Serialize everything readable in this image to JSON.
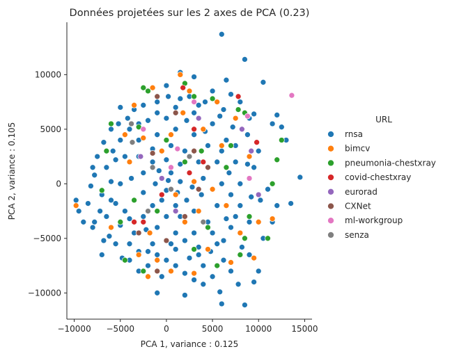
{
  "chart_data": {
    "type": "scatter",
    "title": "Données projetées sur les 2 axes de PCA (0.23)",
    "xlabel": "PCA 1, variance : 0.125",
    "ylabel": "PCA 2, variance : 0.105",
    "xlim": [
      -10800,
      15800
    ],
    "ylim": [
      -12400,
      14800
    ],
    "xticks": [
      -10000,
      -5000,
      0,
      5000,
      10000,
      15000
    ],
    "xtick_labels": [
      "−10000",
      "−5000",
      "0",
      "5000",
      "10000",
      "15000"
    ],
    "yticks": [
      -10000,
      -5000,
      0,
      5000,
      10000
    ],
    "ytick_labels": [
      "−10000",
      "−5000",
      "0",
      "5000",
      "10000"
    ],
    "grid": false,
    "legend_position": "right",
    "legend_title": "URL",
    "series": [
      {
        "name": "rnsa",
        "color": "#1f77b4",
        "points": [
          [
            6000,
            13700
          ],
          [
            8500,
            11400
          ],
          [
            1500,
            10200
          ],
          [
            10500,
            9300
          ],
          [
            6500,
            9500
          ],
          [
            9500,
            6400
          ],
          [
            12000,
            6300
          ],
          [
            11500,
            5500
          ],
          [
            12500,
            5200
          ],
          [
            13000,
            4000
          ],
          [
            14500,
            600
          ],
          [
            13500,
            -1800
          ],
          [
            6000,
            -11000
          ],
          [
            8500,
            -11100
          ],
          [
            5800,
            -9900
          ],
          [
            2000,
            -10200
          ],
          [
            -1000,
            -10000
          ],
          [
            4000,
            -9200
          ],
          [
            7800,
            -9200
          ],
          [
            9500,
            -9000
          ],
          [
            10000,
            -8000
          ],
          [
            -4000,
            -7000
          ],
          [
            -7000,
            -6500
          ],
          [
            -9500,
            -2500
          ],
          [
            -9800,
            -1500
          ],
          [
            -9000,
            -3500
          ],
          [
            -8000,
            -4000
          ],
          [
            -7500,
            2500
          ],
          [
            -6000,
            5000
          ],
          [
            -5000,
            7000
          ],
          [
            -2000,
            8500
          ],
          [
            0,
            9000
          ],
          [
            3000,
            9800
          ],
          [
            5000,
            8500
          ],
          [
            7000,
            8200
          ],
          [
            8000,
            7500
          ],
          [
            9000,
            6000
          ],
          [
            10000,
            3000
          ],
          [
            11000,
            -500
          ],
          [
            12000,
            -2000
          ],
          [
            11500,
            -3500
          ],
          [
            10500,
            -5000
          ],
          [
            9000,
            -6500
          ],
          [
            7000,
            -8000
          ],
          [
            5000,
            -8500
          ],
          [
            3000,
            -8800
          ],
          [
            1000,
            -7500
          ],
          [
            -2000,
            -7500
          ],
          [
            -5500,
            -5500
          ],
          [
            -6500,
            -3000
          ],
          [
            -7000,
            -1000
          ],
          [
            -6500,
            1500
          ],
          [
            -5000,
            4000
          ],
          [
            -3000,
            5500
          ],
          [
            -1000,
            6500
          ],
          [
            1000,
            7000
          ],
          [
            3000,
            6500
          ],
          [
            5000,
            5500
          ],
          [
            6500,
            4000
          ],
          [
            7500,
            2000
          ],
          [
            8000,
            0
          ],
          [
            8000,
            -2000
          ],
          [
            7000,
            -4000
          ],
          [
            5500,
            -5500
          ],
          [
            3500,
            -6500
          ],
          [
            1000,
            -6000
          ],
          [
            -1500,
            -5500
          ],
          [
            -3500,
            -4500
          ],
          [
            -4500,
            -2500
          ],
          [
            -5000,
            0
          ],
          [
            -4500,
            2500
          ],
          [
            -3000,
            4000
          ],
          [
            -1000,
            4500
          ],
          [
            1000,
            5000
          ],
          [
            3000,
            4500
          ],
          [
            4500,
            3500
          ],
          [
            5500,
            2000
          ],
          [
            6000,
            0
          ],
          [
            5500,
            -2000
          ],
          [
            4500,
            -3500
          ],
          [
            3000,
            -4500
          ],
          [
            1000,
            -4500
          ],
          [
            -1000,
            -4000
          ],
          [
            -2500,
            -3000
          ],
          [
            -3500,
            -1500
          ],
          [
            -3800,
            500
          ],
          [
            -3000,
            2500
          ],
          [
            -1500,
            3200
          ],
          [
            500,
            3500
          ],
          [
            2000,
            3000
          ],
          [
            3500,
            2000
          ],
          [
            4000,
            500
          ],
          [
            3800,
            -1000
          ],
          [
            3000,
            -2500
          ],
          [
            1500,
            -3000
          ],
          [
            0,
            -3000
          ],
          [
            -1500,
            -2000
          ],
          [
            -2500,
            -800
          ],
          [
            -2500,
            1000
          ],
          [
            -1500,
            2000
          ],
          [
            0,
            2200
          ],
          [
            1500,
            1800
          ],
          [
            2500,
            1000
          ],
          [
            2800,
            -300
          ],
          [
            2200,
            -1500
          ],
          [
            1000,
            -2000
          ],
          [
            -500,
            -1500
          ],
          [
            -1200,
            0
          ],
          [
            -800,
            1200
          ],
          [
            500,
            1000
          ],
          [
            1500,
            200
          ],
          [
            1200,
            -800
          ],
          [
            0,
            -600
          ],
          [
            200,
            300
          ],
          [
            -8200,
            -200
          ],
          [
            -7800,
            800
          ],
          [
            -6000,
            -1500
          ],
          [
            -5800,
            3000
          ],
          [
            -4200,
            6000
          ],
          [
            -2500,
            7200
          ],
          [
            200,
            8000
          ],
          [
            2500,
            8000
          ],
          [
            4200,
            7500
          ],
          [
            6200,
            6800
          ],
          [
            7200,
            5200
          ],
          [
            8800,
            4500
          ],
          [
            9500,
            1500
          ],
          [
            10200,
            -1500
          ],
          [
            9000,
            -3500
          ],
          [
            8200,
            -5800
          ],
          [
            6200,
            -7000
          ],
          [
            4000,
            -7500
          ],
          [
            2000,
            -8200
          ],
          [
            -500,
            -8500
          ],
          [
            -3000,
            -8000
          ],
          [
            -4800,
            -6800
          ],
          [
            -6200,
            -4800
          ],
          [
            -7200,
            -2500
          ],
          [
            -2000,
            -6200
          ],
          [
            0,
            -7000
          ],
          [
            2500,
            -6800
          ],
          [
            4800,
            -6200
          ],
          [
            6200,
            -5200
          ],
          [
            7500,
            -3000
          ],
          [
            9200,
            -1200
          ],
          [
            8800,
            1800
          ],
          [
            7500,
            3500
          ],
          [
            5800,
            6200
          ],
          [
            3500,
            7200
          ],
          [
            1500,
            7800
          ],
          [
            -1000,
            7500
          ],
          [
            -3500,
            6800
          ],
          [
            -5200,
            5500
          ],
          [
            -6800,
            3800
          ],
          [
            -8000,
            1500
          ],
          [
            -8500,
            -1800
          ],
          [
            -7800,
            -3500
          ],
          [
            -6800,
            -5200
          ],
          [
            -5000,
            -3800
          ],
          [
            -4000,
            -5500
          ],
          [
            -3000,
            -6200
          ],
          [
            -1000,
            -6500
          ],
          [
            500,
            -5500
          ],
          [
            2000,
            -5200
          ],
          [
            3500,
            -5800
          ],
          [
            5000,
            -4500
          ],
          [
            6500,
            -3200
          ],
          [
            7000,
            -1000
          ],
          [
            6800,
            1000
          ],
          [
            6000,
            3000
          ],
          [
            4200,
            4800
          ],
          [
            2200,
            5800
          ],
          [
            0,
            6000
          ],
          [
            -2000,
            5800
          ],
          [
            -4000,
            5000
          ],
          [
            -5500,
            2200
          ],
          [
            -6000,
            200
          ],
          [
            -5500,
            -1800
          ],
          [
            -4000,
            -3200
          ],
          [
            -2200,
            -4200
          ]
        ]
      },
      {
        "name": "bimcv",
        "color": "#ff7f0e",
        "points": [
          [
            -9800,
            -2000
          ],
          [
            -3500,
            7200
          ],
          [
            1500,
            10000
          ],
          [
            -1500,
            8800
          ],
          [
            2500,
            8500
          ],
          [
            4000,
            5000
          ],
          [
            -2500,
            4200
          ],
          [
            1000,
            -1000
          ],
          [
            3000,
            200
          ],
          [
            5000,
            -500
          ],
          [
            -1000,
            -7000
          ],
          [
            500,
            -8000
          ],
          [
            -2000,
            -8500
          ],
          [
            3000,
            -8200
          ],
          [
            7000,
            -7200
          ],
          [
            10000,
            -3500
          ],
          [
            11500,
            -3200
          ],
          [
            9000,
            2500
          ],
          [
            6000,
            3500
          ],
          [
            -4000,
            2000
          ],
          [
            -6000,
            -4000
          ],
          [
            -500,
            3000
          ],
          [
            2000,
            -3500
          ],
          [
            4500,
            -6000
          ],
          [
            8000,
            -4500
          ],
          [
            -3000,
            -6500
          ],
          [
            1800,
            6500
          ],
          [
            -4500,
            4500
          ],
          [
            5500,
            7500
          ],
          [
            7500,
            6000
          ],
          [
            3500,
            -2500
          ],
          [
            -1800,
            -4500
          ],
          [
            500,
            4500
          ],
          [
            6500,
            -2000
          ],
          [
            9500,
            -6800
          ]
        ]
      },
      {
        "name": "pneumonia-chestxray",
        "color": "#2ca02c",
        "points": [
          [
            -2500,
            8800
          ],
          [
            -2000,
            8500
          ],
          [
            2000,
            9200
          ],
          [
            3000,
            8000
          ],
          [
            5000,
            7800
          ],
          [
            7800,
            6800
          ],
          [
            8500,
            6500
          ],
          [
            12500,
            4000
          ],
          [
            12000,
            2200
          ],
          [
            11500,
            0
          ],
          [
            9000,
            -3000
          ],
          [
            8500,
            -5000
          ],
          [
            11000,
            -5000
          ],
          [
            8000,
            -6500
          ],
          [
            -6000,
            5500
          ],
          [
            -6500,
            3000
          ],
          [
            -5000,
            -3500
          ],
          [
            -4500,
            -7000
          ],
          [
            -2500,
            -8000
          ],
          [
            3000,
            -6000
          ],
          [
            4500,
            -4000
          ],
          [
            2000,
            2000
          ],
          [
            0,
            4000
          ],
          [
            -3500,
            -1500
          ],
          [
            6500,
            1500
          ],
          [
            5500,
            -7500
          ],
          [
            1000,
            6500
          ],
          [
            -1000,
            -2500
          ],
          [
            3800,
            3000
          ],
          [
            -7000,
            -600
          ],
          [
            7000,
            3500
          ],
          [
            -3000,
            5200
          ]
        ]
      },
      {
        "name": "covid-chestxray",
        "color": "#d62728",
        "points": [
          [
            1800,
            8800
          ],
          [
            7800,
            8000
          ],
          [
            9800,
            3800
          ],
          [
            -2500,
            -3500
          ],
          [
            -3500,
            -3500
          ],
          [
            4000,
            2000
          ],
          [
            3000,
            5000
          ],
          [
            2500,
            1000
          ],
          [
            -500,
            -1000
          ]
        ]
      },
      {
        "name": "eurorad",
        "color": "#9467bd",
        "points": [
          [
            8200,
            5000
          ],
          [
            10000,
            -1000
          ],
          [
            9200,
            3000
          ],
          [
            -500,
            500
          ],
          [
            1000,
            -2500
          ],
          [
            -2800,
            2500
          ],
          [
            3500,
            6000
          ]
        ]
      },
      {
        "name": "CXNet",
        "color": "#8c564b",
        "points": [
          [
            -1000,
            8000
          ],
          [
            1000,
            6500
          ],
          [
            3000,
            3000
          ],
          [
            -1000,
            -8000
          ],
          [
            -3000,
            -4500
          ],
          [
            2000,
            -3000
          ],
          [
            -1500,
            2800
          ],
          [
            3500,
            -500
          ],
          [
            4500,
            1500
          ],
          [
            0,
            -5200
          ]
        ]
      },
      {
        "name": "ml-workgroup",
        "color": "#e377c2",
        "points": [
          [
            13600,
            8100
          ],
          [
            8800,
            6200
          ],
          [
            9000,
            500
          ],
          [
            500,
            1500
          ],
          [
            3000,
            7500
          ],
          [
            -2500,
            5000
          ],
          [
            1200,
            3200
          ]
        ]
      },
      {
        "name": "senza",
        "color": "#7f7f7f",
        "points": [
          [
            -3800,
            5500
          ],
          [
            -3700,
            3800
          ],
          [
            -1500,
            1500
          ],
          [
            500,
            -500
          ],
          [
            2500,
            2500
          ],
          [
            -2000,
            -2500
          ],
          [
            4000,
            -3500
          ]
        ]
      }
    ]
  }
}
